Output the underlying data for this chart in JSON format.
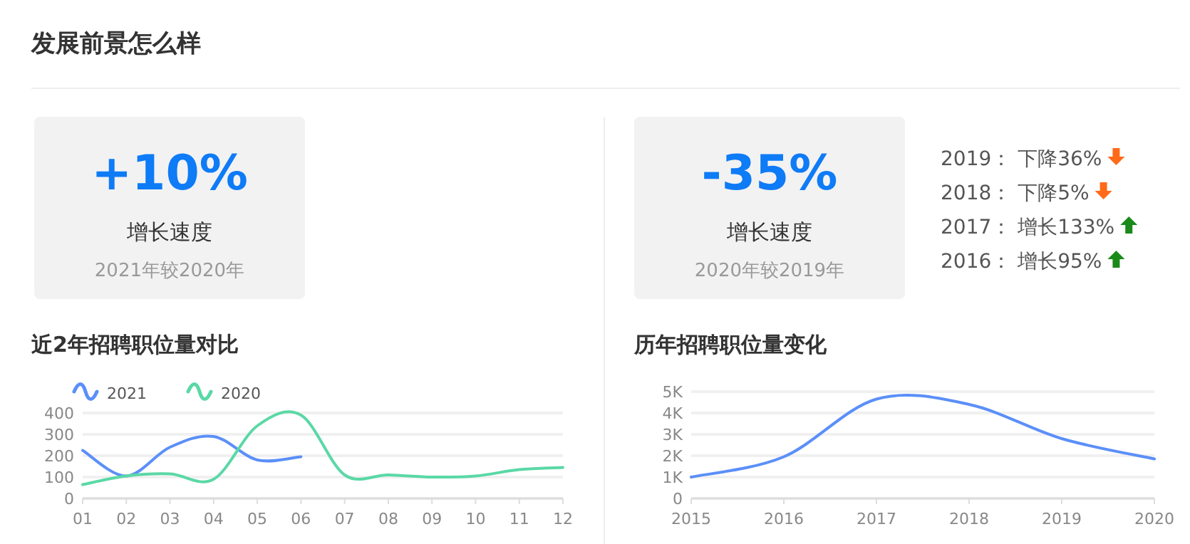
{
  "chart_data": [
    {
      "type": "other",
      "title": "发展前景怎么样",
      "annotations": [
        "+10%",
        "增长速度",
        "2021年较2020年"
      ]
    },
    {
      "type": "other",
      "annotations": [
        "-35%",
        "增长速度",
        "2020年较2019年",
        "2019： 下降36%",
        "2018： 下降5%",
        "2017： 增长133%",
        "2016： 增长95%"
      ]
    },
    {
      "type": "line",
      "title": "近2年招聘职位量对比",
      "categories": [
        "01",
        "02",
        "03",
        "04",
        "05",
        "06",
        "07",
        "08",
        "09",
        "10",
        "11",
        "12"
      ],
      "series": [
        {
          "name": "2021",
          "color": "#5b8ff9",
          "values": [
            225,
            105,
            240,
            290,
            180,
            195,
            null,
            null,
            null,
            null,
            null,
            null
          ]
        },
        {
          "name": "2020",
          "color": "#5ad8a6",
          "values": [
            65,
            105,
            115,
            90,
            340,
            390,
            110,
            110,
            100,
            105,
            135,
            145
          ]
        }
      ],
      "ylim": [
        0,
        400
      ],
      "yticks": [
        0,
        100,
        200,
        300,
        400
      ],
      "grid": "y",
      "legend": "top left"
    },
    {
      "type": "line",
      "title": "历年招聘职位量变化",
      "categories": [
        "2015",
        "2016",
        "2017",
        "2018",
        "2019",
        "2020"
      ],
      "series": [
        {
          "color": "#5b8ff9",
          "values": [
            1000,
            1950,
            4650,
            4400,
            2800,
            1850
          ]
        }
      ],
      "ylim": [
        0,
        5000
      ],
      "yticks": [
        0,
        {
          "value": 1000,
          "label": "1K"
        },
        {
          "value": 2000,
          "label": "2K"
        },
        {
          "value": 3000,
          "label": "3K"
        },
        {
          "value": 4000,
          "label": "4K"
        },
        {
          "value": 5000,
          "label": "5K"
        }
      ],
      "grid": "y"
    }
  ]
}
